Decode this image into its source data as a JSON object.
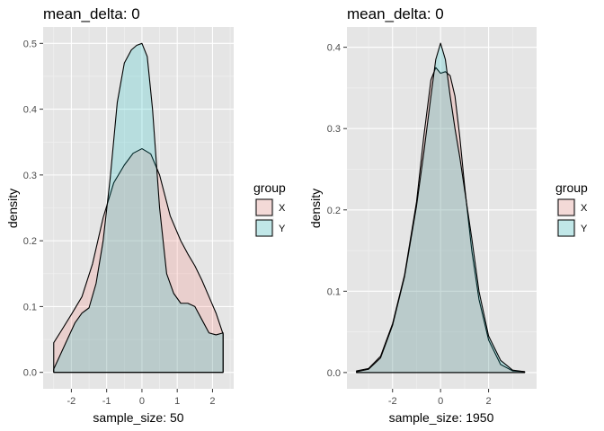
{
  "chart_data": [
    {
      "type": "area",
      "title": "mean_delta: 0",
      "xlabel": "sample_size: 50",
      "ylabel": "density",
      "xlim": [
        -2.8,
        2.6
      ],
      "ylim": [
        -0.025,
        0.525
      ],
      "x_ticks": [
        -2,
        -1,
        0,
        1,
        2
      ],
      "x_tick_labels": [
        "-2",
        "-1",
        "0",
        "1",
        "2"
      ],
      "y_ticks": [
        0.0,
        0.1,
        0.2,
        0.3,
        0.4,
        0.5
      ],
      "y_tick_labels": [
        "0.0",
        "0.1",
        "0.2",
        "0.3",
        "0.4",
        "0.5"
      ],
      "grid": true,
      "legend": {
        "title": "group",
        "position": "right",
        "labels": [
          "X",
          "Y"
        ]
      },
      "series": [
        {
          "name": "X",
          "color": "#f8766d",
          "x": [
            -2.5,
            -2.3,
            -2.0,
            -1.7,
            -1.4,
            -1.1,
            -0.8,
            -0.5,
            -0.25,
            0.0,
            0.25,
            0.5,
            0.8,
            1.1,
            1.3,
            1.5,
            1.7,
            1.9,
            2.1,
            2.3
          ],
          "y": [
            0.045,
            0.062,
            0.088,
            0.115,
            0.165,
            0.235,
            0.288,
            0.315,
            0.333,
            0.34,
            0.332,
            0.3,
            0.238,
            0.2,
            0.18,
            0.162,
            0.14,
            0.115,
            0.09,
            0.058
          ]
        },
        {
          "name": "Y",
          "color": "#00bfc4",
          "x": [
            -2.5,
            -2.2,
            -1.9,
            -1.7,
            -1.5,
            -1.3,
            -1.1,
            -0.9,
            -0.7,
            -0.5,
            -0.3,
            -0.15,
            0.0,
            0.15,
            0.3,
            0.5,
            0.7,
            0.9,
            1.1,
            1.3,
            1.5,
            1.7,
            1.9,
            2.1,
            2.3
          ],
          "y": [
            0.005,
            0.04,
            0.075,
            0.09,
            0.098,
            0.135,
            0.2,
            0.295,
            0.41,
            0.47,
            0.49,
            0.497,
            0.5,
            0.48,
            0.4,
            0.25,
            0.15,
            0.12,
            0.105,
            0.105,
            0.1,
            0.08,
            0.06,
            0.057,
            0.06
          ]
        }
      ]
    },
    {
      "type": "area",
      "title": "mean_delta: 0",
      "xlabel": "sample_size: 1950",
      "ylabel": "density",
      "xlim": [
        -3.9,
        4.0
      ],
      "ylim": [
        -0.02,
        0.425
      ],
      "x_ticks": [
        -2,
        0,
        2
      ],
      "x_tick_labels": [
        "-2",
        "0",
        "2"
      ],
      "y_ticks": [
        0.0,
        0.1,
        0.2,
        0.3,
        0.4
      ],
      "y_tick_labels": [
        "0.0",
        "0.1",
        "0.2",
        "0.3",
        "0.4"
      ],
      "grid": true,
      "legend": {
        "title": "group",
        "position": "right",
        "labels": [
          "X",
          "Y"
        ]
      },
      "series": [
        {
          "name": "X",
          "color": "#f8766d",
          "x": [
            -3.5,
            -3.0,
            -2.5,
            -2.0,
            -1.5,
            -1.0,
            -0.7,
            -0.4,
            -0.2,
            0.0,
            0.2,
            0.4,
            0.6,
            0.8,
            1.0,
            1.3,
            1.6,
            2.0,
            2.5,
            3.0,
            3.5
          ],
          "y": [
            0.002,
            0.005,
            0.02,
            0.06,
            0.12,
            0.21,
            0.29,
            0.36,
            0.375,
            0.368,
            0.37,
            0.365,
            0.34,
            0.29,
            0.23,
            0.15,
            0.09,
            0.04,
            0.01,
            0.002,
            0.001
          ]
        },
        {
          "name": "Y",
          "color": "#00bfc4",
          "x": [
            -3.5,
            -3.0,
            -2.5,
            -2.0,
            -1.5,
            -1.0,
            -0.7,
            -0.4,
            -0.2,
            0.0,
            0.2,
            0.4,
            0.6,
            0.8,
            1.0,
            1.3,
            1.6,
            2.0,
            2.5,
            3.0,
            3.5
          ],
          "y": [
            0.001,
            0.004,
            0.018,
            0.058,
            0.118,
            0.205,
            0.27,
            0.34,
            0.385,
            0.405,
            0.385,
            0.34,
            0.3,
            0.265,
            0.225,
            0.165,
            0.1,
            0.045,
            0.015,
            0.003,
            0.001
          ]
        }
      ]
    }
  ]
}
